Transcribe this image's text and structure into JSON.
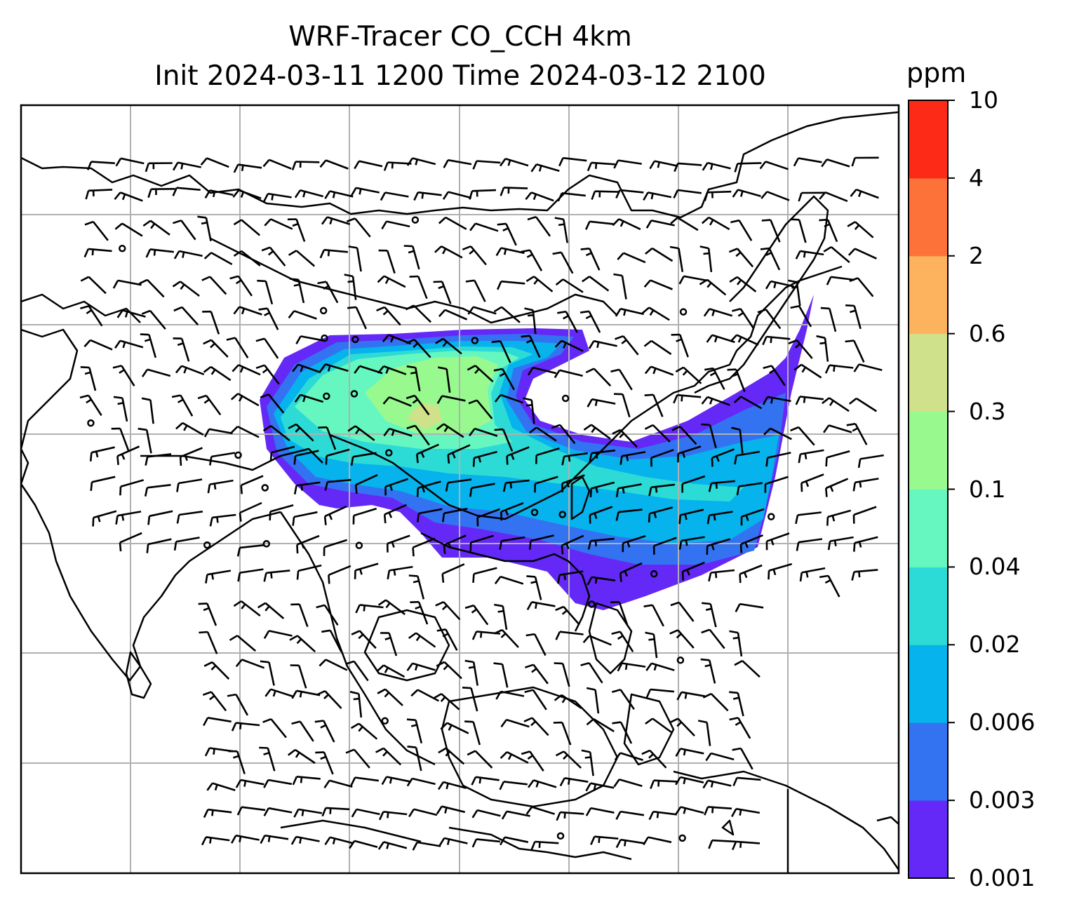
{
  "title": {
    "line1": "WRF-Tracer CO_CCH 4km",
    "line2": "Init 2024-03-11 1200 Time 2024-03-12 2100"
  },
  "colorbar": {
    "unit": "ppm",
    "levels": [
      "0.001",
      "0.003",
      "0.006",
      "0.02",
      "0.04",
      "0.1",
      "0.3",
      "0.6",
      "2",
      "4",
      "10"
    ],
    "colors": [
      "#6429f7",
      "#3373f2",
      "#06b3ec",
      "#2ddbd6",
      "#66f7c0",
      "#98f98f",
      "#cfe18a",
      "#fdb25e",
      "#fd7238",
      "#fc2a16"
    ]
  },
  "map": {
    "field": "CO_CCH tracer concentration",
    "overlays": [
      "coastlines and borders",
      "lat/lon gridlines",
      "wind barbs"
    ],
    "grid": true
  }
}
